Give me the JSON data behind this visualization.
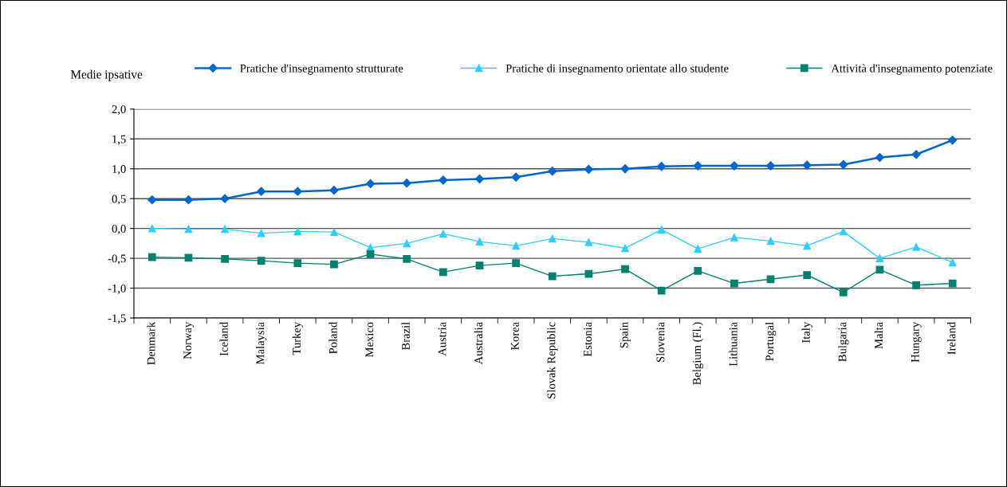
{
  "chart_data": {
    "type": "line",
    "ylabel": "Medie ipsative",
    "categories": [
      "Denmark",
      "Norway",
      "Iceland",
      "Malaysia",
      "Turkey",
      "Poland",
      "Mexico",
      "Brazil",
      "Austria",
      "Australia",
      "Korea",
      "Slovak Republic",
      "Estonia",
      "Spain",
      "Slovenia",
      "Belgium (Fl.)",
      "Lithuania",
      "Portugal",
      "Italy",
      "Bulgaria",
      "Malta",
      "Hungary",
      "Ireland"
    ],
    "series": [
      {
        "name": "Pratiche d'insegnamento strutturate",
        "color": "#0066cc",
        "marker": "diamond",
        "values": [
          0.48,
          0.48,
          0.5,
          0.62,
          0.62,
          0.64,
          0.75,
          0.76,
          0.81,
          0.83,
          0.86,
          0.96,
          0.99,
          1.0,
          1.04,
          1.05,
          1.05,
          1.05,
          1.06,
          1.07,
          1.19,
          1.24,
          1.48
        ]
      },
      {
        "name": "Pratiche di insegnamento orientate allo studente",
        "color": "#33ccff",
        "marker": "triangle",
        "values": [
          0.0,
          -0.01,
          -0.01,
          -0.08,
          -0.05,
          -0.06,
          -0.32,
          -0.25,
          -0.09,
          -0.22,
          -0.29,
          -0.17,
          -0.23,
          -0.33,
          -0.02,
          -0.34,
          -0.15,
          -0.21,
          -0.29,
          -0.05,
          -0.5,
          -0.31,
          -0.57
        ]
      },
      {
        "name": "Attività d'insegnamento potenziate",
        "color": "#00806e",
        "marker": "square",
        "values": [
          -0.48,
          -0.49,
          -0.51,
          -0.54,
          -0.58,
          -0.6,
          -0.43,
          -0.51,
          -0.73,
          -0.62,
          -0.58,
          -0.8,
          -0.76,
          -0.68,
          -1.04,
          -0.71,
          -0.92,
          -0.85,
          -0.78,
          -1.07,
          -0.69,
          -0.95,
          -0.92
        ]
      }
    ],
    "ylim": [
      -1.5,
      2.0
    ],
    "yticks": [
      {
        "value": -1.5,
        "label": "-1,5"
      },
      {
        "value": -1.0,
        "label": "-1,0"
      },
      {
        "value": -0.5,
        "label": "-0,5"
      },
      {
        "value": 0.0,
        "label": "0,0"
      },
      {
        "value": 0.5,
        "label": "0,5"
      },
      {
        "value": 1.0,
        "label": "1,0"
      },
      {
        "value": 1.5,
        "label": "1,5"
      },
      {
        "value": 2.0,
        "label": "2,0"
      }
    ],
    "grid": "y",
    "legend": "top",
    "line_style": "solid"
  }
}
